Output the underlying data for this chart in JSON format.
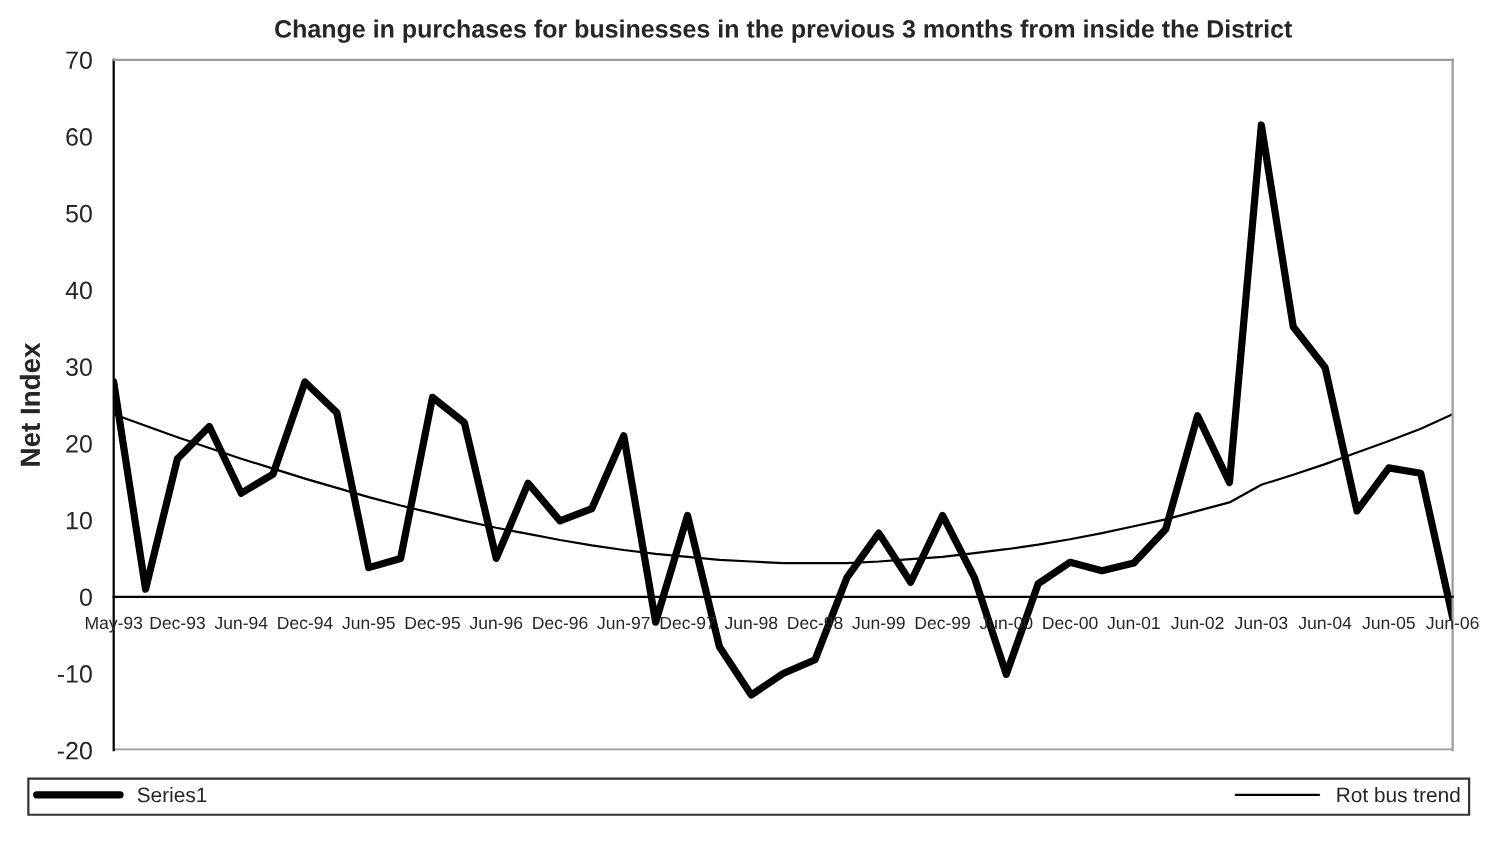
{
  "chart_data": {
    "type": "line",
    "title": "Change in purchases for businesses in the previous 3 months from inside the District",
    "ylabel": "Net Index",
    "categories": [
      "May-93",
      null,
      "Dec-93",
      null,
      "Jun-94",
      null,
      "Dec-94",
      null,
      "Jun-95",
      null,
      "Dec-95",
      null,
      "Jun-96",
      null,
      "Dec-96",
      null,
      "Jun-97",
      null,
      "Dec-97",
      null,
      "Jun-98",
      null,
      "Dec-98",
      null,
      "Jun-99",
      null,
      "Dec-99",
      null,
      "Jun-00",
      null,
      "Dec-00",
      null,
      "Jun-01",
      null,
      "Jun-02",
      null,
      "Jun-03",
      null,
      "Jun-04",
      null,
      "Jun-05",
      null,
      "Jun-06"
    ],
    "series": [
      {
        "name": "Series1",
        "color": "#000000",
        "values": [
          28,
          1,
          18,
          22.2,
          13.5,
          16,
          28,
          24,
          3.8,
          5,
          26,
          22.7,
          5,
          14.8,
          9.9,
          11.5,
          21,
          -3.3,
          10.6,
          -6.5,
          -12.8,
          -10,
          -8.2,
          2.5,
          8.3,
          1.9,
          10.6,
          2.5,
          -10.1,
          1.7,
          4.5,
          3.4,
          4.4,
          8.8,
          23.6,
          14.9,
          61.5,
          35.2,
          29.9,
          11.2,
          16.8,
          16.1,
          -2.7
        ]
      },
      {
        "name": "Rot bus trend",
        "color": "#000000",
        "values": [
          23.8,
          22.3,
          20.8,
          19.4,
          18.0,
          16.7,
          15.4,
          14.2,
          13.0,
          11.9,
          10.9,
          9.9,
          9.0,
          8.2,
          7.4,
          6.7,
          6.1,
          5.6,
          5.2,
          4.8,
          4.6,
          4.4,
          4.4,
          4.4,
          4.6,
          4.9,
          5.2,
          5.7,
          6.2,
          6.8,
          7.5,
          8.3,
          9.2,
          10.1,
          11.2,
          12.3,
          14.6,
          15.9,
          17.3,
          18.8,
          20.3,
          21.9,
          23.8
        ]
      }
    ],
    "ylim": [
      -20,
      70
    ],
    "yticks": [
      -20,
      -10,
      0,
      10,
      20,
      30,
      40,
      50,
      60,
      70
    ],
    "grid": false,
    "legend": "bottom",
    "marker": "none",
    "line_style": "solid"
  }
}
